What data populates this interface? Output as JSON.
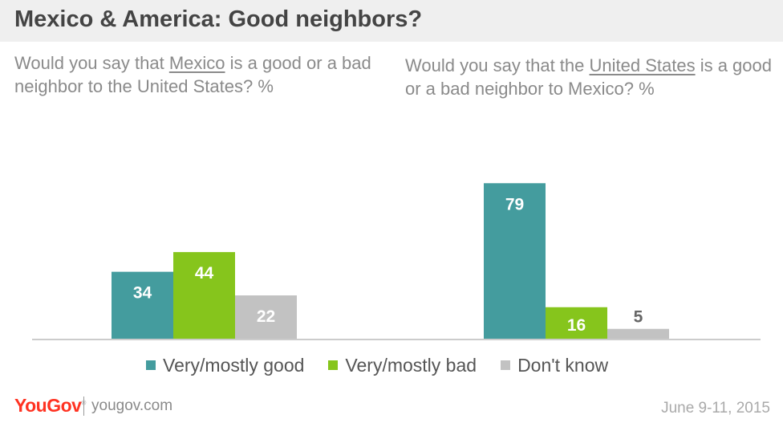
{
  "title": "Mexico & America: Good neighbors?",
  "questions": {
    "left": {
      "pre": "Would you say that ",
      "emph": "Mexico",
      "post": " is a good or a bad neighbor to the United States? %"
    },
    "right": {
      "pre": "Would you say that the ",
      "emph": "United States",
      "post": " is a good or a bad neighbor to Mexico? %"
    }
  },
  "chart_data": {
    "type": "bar",
    "categories": [
      "Would you say that Mexico is a good or a bad neighbor to the United States? %",
      "Would you say that the United States is a good or a bad neighbor to Mexico? %"
    ],
    "series": [
      {
        "name": "Very/mostly good",
        "values": [
          34,
          79
        ],
        "color": "#449c9e"
      },
      {
        "name": "Very/mostly bad",
        "values": [
          44,
          16
        ],
        "color": "#86c51c"
      },
      {
        "name": "Don't know",
        "values": [
          22,
          5
        ],
        "color": "#c2c2c2"
      }
    ],
    "ylim": [
      0,
      84
    ],
    "grid": false,
    "legend": "bottom"
  },
  "footer": {
    "brand": "YouGov",
    "site": "yougov.com",
    "date": "June 9-11, 2015"
  }
}
